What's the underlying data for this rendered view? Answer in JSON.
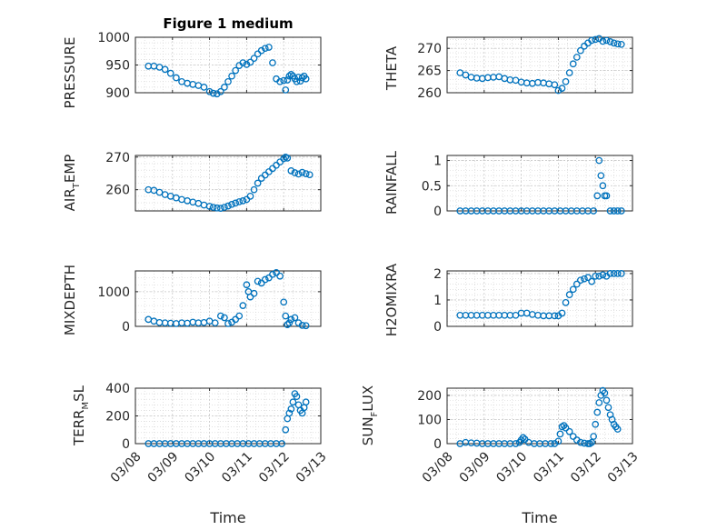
{
  "figure": {
    "x_tick_labels": [
      "03/08",
      "03/09",
      "03/10",
      "03/11",
      "03/12",
      "03/13"
    ],
    "marker_color": "#0072BD"
  },
  "chart_data": [
    {
      "type": "scatter",
      "title": "Figure 1 medium",
      "ylabel": "PRESSURE",
      "xlabel": "",
      "xlim": [
        0,
        5
      ],
      "ylim": [
        900,
        1000
      ],
      "yticks": [
        900,
        950,
        1000
      ],
      "grid": true,
      "series": [
        {
          "x": [
            0.35,
            0.5,
            0.65,
            0.8,
            0.95,
            1.1,
            1.25,
            1.4,
            1.55,
            1.7,
            1.85,
            2.0,
            2.1,
            2.2,
            2.3,
            2.4,
            2.5,
            2.6,
            2.7,
            2.8,
            2.9,
            3.0,
            3.1,
            3.2,
            3.3,
            3.4,
            3.5,
            3.6,
            3.7,
            3.8,
            3.9,
            4.0,
            4.05,
            4.1,
            4.15,
            4.2,
            4.25,
            4.3,
            4.35,
            4.4,
            4.45,
            4.5,
            4.55,
            4.6
          ],
          "y": [
            948,
            948,
            946,
            942,
            935,
            927,
            920,
            917,
            915,
            913,
            910,
            902,
            899,
            898,
            902,
            910,
            920,
            930,
            940,
            949,
            954,
            951,
            955,
            962,
            970,
            976,
            980,
            982,
            954,
            925,
            920,
            922,
            905,
            923,
            930,
            933,
            930,
            925,
            920,
            928,
            921,
            927,
            930,
            925
          ]
        }
      ]
    },
    {
      "type": "scatter",
      "title": "",
      "ylabel": "THETA",
      "xlabel": "",
      "xlim": [
        0,
        5
      ],
      "ylim": [
        260,
        272.5
      ],
      "yticks": [
        260,
        265,
        270
      ],
      "grid": true,
      "series": [
        {
          "x": [
            0.35,
            0.5,
            0.65,
            0.8,
            0.95,
            1.1,
            1.25,
            1.4,
            1.55,
            1.7,
            1.85,
            2.0,
            2.15,
            2.3,
            2.45,
            2.6,
            2.75,
            2.9,
            3.0,
            3.1,
            3.2,
            3.3,
            3.4,
            3.5,
            3.6,
            3.7,
            3.8,
            3.9,
            4.0,
            4.1,
            4.2,
            4.3,
            4.4,
            4.5,
            4.6,
            4.7
          ],
          "y": [
            264.5,
            264,
            263.5,
            263.3,
            263.2,
            263.4,
            263.5,
            263.6,
            263.2,
            262.9,
            262.8,
            262.4,
            262.2,
            262.1,
            262.3,
            262.2,
            262,
            261.8,
            260.5,
            261,
            262.5,
            264.5,
            266.5,
            268,
            269.5,
            270.5,
            271.2,
            271.8,
            272,
            272.2,
            271.6,
            271.8,
            271.5,
            271.2,
            271.0,
            270.9
          ]
        }
      ]
    },
    {
      "type": "scatter",
      "title": "",
      "ylabel": "AIR_TEMP",
      "xlabel": "",
      "xlim": [
        0,
        5
      ],
      "ylim": [
        253.5,
        270.5
      ],
      "yticks": [
        260,
        270
      ],
      "grid": true,
      "series": [
        {
          "x": [
            0.35,
            0.5,
            0.65,
            0.8,
            0.95,
            1.1,
            1.25,
            1.4,
            1.55,
            1.7,
            1.85,
            2.0,
            2.1,
            2.2,
            2.3,
            2.4,
            2.5,
            2.6,
            2.7,
            2.8,
            2.9,
            3.0,
            3.1,
            3.2,
            3.3,
            3.4,
            3.5,
            3.6,
            3.7,
            3.8,
            3.9,
            4.0,
            4.05,
            4.1,
            4.2,
            4.3,
            4.4,
            4.5,
            4.6,
            4.7
          ],
          "y": [
            260,
            259.8,
            259.2,
            258.5,
            258,
            257.5,
            257,
            256.6,
            256.2,
            255.8,
            255.3,
            254.9,
            254.6,
            254.4,
            254.3,
            254.6,
            255,
            255.5,
            255.9,
            256.3,
            256.6,
            257,
            258,
            260,
            262,
            263.5,
            264.5,
            265.5,
            266.5,
            267.5,
            268.5,
            269.5,
            270,
            269.7,
            265.8,
            265.2,
            264.8,
            265.3,
            264.9,
            264.6
          ]
        }
      ]
    },
    {
      "type": "scatter",
      "title": "",
      "ylabel": "RAINFALL",
      "xlabel": "",
      "xlim": [
        0,
        5
      ],
      "ylim": [
        0,
        1.1
      ],
      "yticks": [
        0,
        0.5,
        1
      ],
      "grid": true,
      "series": [
        {
          "x": [
            0.35,
            0.5,
            0.65,
            0.8,
            0.95,
            1.1,
            1.25,
            1.4,
            1.55,
            1.7,
            1.85,
            2.0,
            2.15,
            2.3,
            2.45,
            2.6,
            2.75,
            2.9,
            3.05,
            3.2,
            3.35,
            3.5,
            3.65,
            3.8,
            3.95,
            4.05,
            4.1,
            4.15,
            4.2,
            4.25,
            4.3,
            4.4,
            4.5,
            4.6,
            4.7
          ],
          "y": [
            0,
            0,
            0,
            0,
            0,
            0,
            0,
            0,
            0,
            0,
            0,
            0,
            0,
            0,
            0,
            0,
            0,
            0,
            0,
            0,
            0,
            0,
            0,
            0,
            0,
            0.3,
            1.0,
            0.7,
            0.5,
            0.3,
            0.3,
            0,
            0,
            0,
            0
          ]
        }
      ]
    },
    {
      "type": "scatter",
      "title": "",
      "ylabel": "MIXDEPTH",
      "xlabel": "",
      "xlim": [
        0,
        5
      ],
      "ylim": [
        0,
        1600
      ],
      "yticks": [
        0,
        1000
      ],
      "grid": true,
      "series": [
        {
          "x": [
            0.35,
            0.5,
            0.65,
            0.8,
            0.95,
            1.1,
            1.25,
            1.4,
            1.55,
            1.7,
            1.85,
            2.0,
            2.15,
            2.3,
            2.4,
            2.5,
            2.6,
            2.7,
            2.8,
            2.9,
            3.0,
            3.05,
            3.1,
            3.2,
            3.3,
            3.4,
            3.5,
            3.6,
            3.7,
            3.8,
            3.9,
            4.0,
            4.05,
            4.1,
            4.15,
            4.2,
            4.3,
            4.4,
            4.5,
            4.6
          ],
          "y": [
            200,
            150,
            110,
            100,
            90,
            80,
            100,
            90,
            120,
            100,
            110,
            150,
            100,
            300,
            250,
            80,
            120,
            200,
            300,
            600,
            1200,
            1000,
            850,
            950,
            1300,
            1250,
            1350,
            1400,
            1500,
            1550,
            1450,
            700,
            300,
            50,
            100,
            200,
            250,
            100,
            30,
            20
          ]
        }
      ]
    },
    {
      "type": "scatter",
      "title": "",
      "ylabel": "H2OMIXRA",
      "xlabel": "",
      "xlim": [
        0,
        5
      ],
      "ylim": [
        0,
        2.1
      ],
      "yticks": [
        0,
        1,
        2
      ],
      "grid": true,
      "series": [
        {
          "x": [
            0.35,
            0.5,
            0.65,
            0.8,
            0.95,
            1.1,
            1.25,
            1.4,
            1.55,
            1.7,
            1.85,
            2.0,
            2.15,
            2.3,
            2.45,
            2.6,
            2.75,
            2.9,
            3.0,
            3.1,
            3.2,
            3.3,
            3.4,
            3.5,
            3.6,
            3.7,
            3.8,
            3.9,
            4.0,
            4.1,
            4.2,
            4.3,
            4.4,
            4.5,
            4.6,
            4.7
          ],
          "y": [
            0.42,
            0.42,
            0.42,
            0.42,
            0.42,
            0.42,
            0.42,
            0.42,
            0.42,
            0.42,
            0.42,
            0.5,
            0.5,
            0.45,
            0.42,
            0.4,
            0.4,
            0.4,
            0.4,
            0.5,
            0.9,
            1.2,
            1.4,
            1.6,
            1.75,
            1.8,
            1.85,
            1.7,
            1.9,
            1.9,
            1.95,
            1.9,
            2.0,
            2.0,
            2.0,
            2.0
          ]
        }
      ]
    },
    {
      "type": "scatter",
      "title": "",
      "ylabel": "TERR_MSL",
      "xlabel": "Time",
      "xlim": [
        0,
        5
      ],
      "ylim": [
        0,
        400
      ],
      "yticks": [
        0,
        200,
        400
      ],
      "grid": true,
      "series": [
        {
          "x": [
            0.35,
            0.5,
            0.65,
            0.8,
            0.95,
            1.1,
            1.25,
            1.4,
            1.55,
            1.7,
            1.85,
            2.0,
            2.15,
            2.3,
            2.45,
            2.6,
            2.75,
            2.9,
            3.05,
            3.2,
            3.35,
            3.5,
            3.65,
            3.8,
            3.95,
            4.05,
            4.1,
            4.15,
            4.2,
            4.25,
            4.3,
            4.35,
            4.4,
            4.45,
            4.5,
            4.55,
            4.6
          ],
          "y": [
            0,
            0,
            0,
            0,
            0,
            0,
            0,
            0,
            0,
            0,
            0,
            0,
            0,
            0,
            0,
            0,
            0,
            0,
            0,
            0,
            0,
            0,
            0,
            0,
            0,
            100,
            180,
            220,
            250,
            300,
            360,
            340,
            280,
            240,
            220,
            260,
            300
          ]
        }
      ]
    },
    {
      "type": "scatter",
      "title": "",
      "ylabel": "SUN_FLUX",
      "xlabel": "Time",
      "xlim": [
        0,
        5
      ],
      "ylim": [
        0,
        230
      ],
      "yticks": [
        0,
        100,
        200
      ],
      "grid": true,
      "series": [
        {
          "x": [
            0.35,
            0.5,
            0.65,
            0.8,
            0.95,
            1.1,
            1.25,
            1.4,
            1.55,
            1.7,
            1.85,
            1.95,
            2.0,
            2.05,
            2.1,
            2.2,
            2.35,
            2.5,
            2.65,
            2.8,
            2.9,
            3.0,
            3.05,
            3.1,
            3.15,
            3.2,
            3.3,
            3.4,
            3.5,
            3.6,
            3.7,
            3.8,
            3.85,
            3.9,
            3.95,
            4.0,
            4.05,
            4.1,
            4.15,
            4.2,
            4.25,
            4.3,
            4.35,
            4.4,
            4.45,
            4.5,
            4.55,
            4.6
          ],
          "y": [
            0,
            5,
            3,
            2,
            0,
            0,
            0,
            0,
            0,
            0,
            0,
            5,
            15,
            25,
            18,
            5,
            0,
            0,
            0,
            0,
            0,
            10,
            40,
            70,
            75,
            65,
            50,
            30,
            15,
            5,
            2,
            0,
            0,
            5,
            30,
            80,
            130,
            170,
            200,
            220,
            210,
            180,
            150,
            120,
            100,
            80,
            70,
            60
          ]
        }
      ]
    }
  ]
}
